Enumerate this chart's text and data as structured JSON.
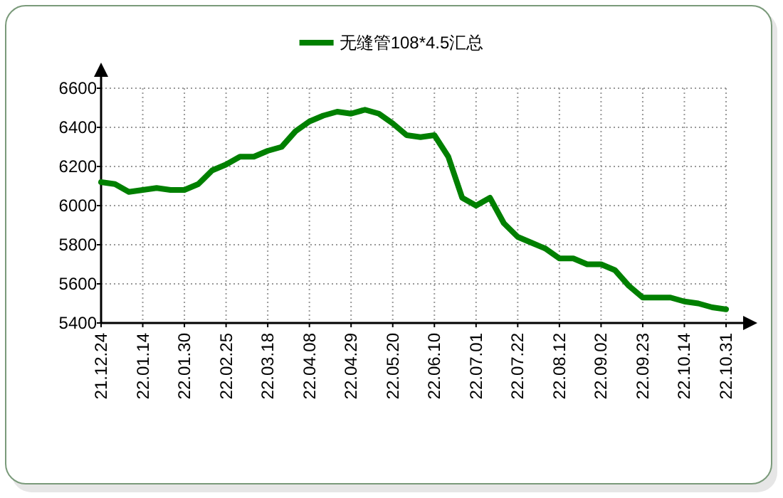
{
  "chart_data": {
    "type": "line",
    "categories": [
      "21.12.24",
      null,
      null,
      "22.01.14",
      null,
      null,
      "22.01.30",
      null,
      null,
      "22.02.25",
      null,
      null,
      "22.03.18",
      null,
      null,
      "22.04.08",
      null,
      null,
      "22.04.29",
      null,
      null,
      "22.05.20",
      null,
      null,
      "22.06.10",
      null,
      null,
      "22.07.01",
      null,
      null,
      "22.07.22",
      null,
      null,
      "22.08.12",
      null,
      null,
      "22.09.02",
      null,
      null,
      "22.09.23",
      null,
      null,
      "22.10.14",
      null,
      null,
      "22.10.31"
    ],
    "series": [
      {
        "name": "无缝管108*4.5汇总",
        "color": "#008000",
        "values": [
          6120,
          6110,
          6070,
          6080,
          6090,
          6080,
          6080,
          6110,
          6180,
          6210,
          6250,
          6250,
          6280,
          6300,
          6380,
          6430,
          6460,
          6480,
          6470,
          6490,
          6470,
          6420,
          6360,
          6350,
          6360,
          6250,
          6040,
          6000,
          6040,
          5910,
          5840,
          5810,
          5780,
          5730,
          5730,
          5700,
          5700,
          5670,
          5590,
          5530,
          5530,
          5530,
          5510,
          5500,
          5480,
          5470
        ]
      }
    ],
    "ylim": [
      5400,
      6600
    ],
    "yticks": [
      5400,
      5600,
      5800,
      6000,
      6200,
      6400,
      6600
    ],
    "grid": true,
    "legend": "top",
    "marker": "none",
    "line_style": "solid"
  }
}
